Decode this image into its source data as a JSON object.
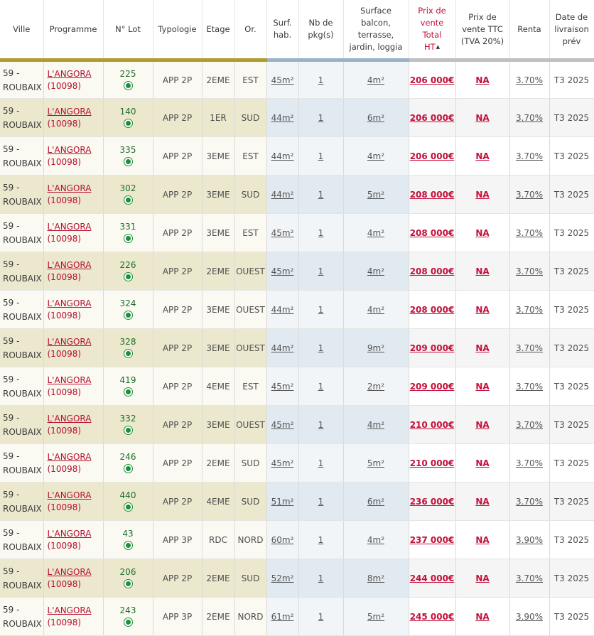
{
  "columns": {
    "ville": "Ville",
    "programme": "Programme",
    "lot": "N° Lot",
    "typologie": "Typologie",
    "etage": "Etage",
    "or": "Or.",
    "surf": "Surf. hab.",
    "pkg": "Nb de pkg(s)",
    "surface_ext": "Surface balcon, terrasse, jardin, loggia",
    "prix_ht": "Prix de vente Total HT",
    "prix_ttc": "Prix de vente TTC (TVA 20%)",
    "renta": "Renta",
    "livraison": "Date de livraison prév"
  },
  "rows": [
    {
      "ville": "59 - ROUBAIX",
      "programme": "L'ANGORA",
      "code": "(10098)",
      "lot": "225",
      "typo": "APP 2P",
      "etage": "2EME",
      "or": "EST",
      "surf": "45m²",
      "pkg": "1",
      "ext": "4m²",
      "prix": "206 000€",
      "ttc": "NA",
      "renta": "3.70%",
      "livraison": "T3 2025"
    },
    {
      "ville": "59 - ROUBAIX",
      "programme": "L'ANGORA",
      "code": "(10098)",
      "lot": "140",
      "typo": "APP 2P",
      "etage": "1ER",
      "or": "SUD",
      "surf": "44m²",
      "pkg": "1",
      "ext": "6m²",
      "prix": "206 000€",
      "ttc": "NA",
      "renta": "3.70%",
      "livraison": "T3 2025"
    },
    {
      "ville": "59 - ROUBAIX",
      "programme": "L'ANGORA",
      "code": "(10098)",
      "lot": "335",
      "typo": "APP 2P",
      "etage": "3EME",
      "or": "EST",
      "surf": "44m²",
      "pkg": "1",
      "ext": "4m²",
      "prix": "206 000€",
      "ttc": "NA",
      "renta": "3.70%",
      "livraison": "T3 2025"
    },
    {
      "ville": "59 - ROUBAIX",
      "programme": "L'ANGORA",
      "code": "(10098)",
      "lot": "302",
      "typo": "APP 2P",
      "etage": "3EME",
      "or": "SUD",
      "surf": "44m²",
      "pkg": "1",
      "ext": "5m²",
      "prix": "208 000€",
      "ttc": "NA",
      "renta": "3.70%",
      "livraison": "T3 2025"
    },
    {
      "ville": "59 - ROUBAIX",
      "programme": "L'ANGORA",
      "code": "(10098)",
      "lot": "331",
      "typo": "APP 2P",
      "etage": "3EME",
      "or": "EST",
      "surf": "45m²",
      "pkg": "1",
      "ext": "4m²",
      "prix": "208 000€",
      "ttc": "NA",
      "renta": "3.70%",
      "livraison": "T3 2025"
    },
    {
      "ville": "59 - ROUBAIX",
      "programme": "L'ANGORA",
      "code": "(10098)",
      "lot": "226",
      "typo": "APP 2P",
      "etage": "2EME",
      "or": "OUEST",
      "surf": "45m²",
      "pkg": "1",
      "ext": "4m²",
      "prix": "208 000€",
      "ttc": "NA",
      "renta": "3.70%",
      "livraison": "T3 2025"
    },
    {
      "ville": "59 - ROUBAIX",
      "programme": "L'ANGORA",
      "code": "(10098)",
      "lot": "324",
      "typo": "APP 2P",
      "etage": "3EME",
      "or": "OUEST",
      "surf": "44m²",
      "pkg": "1",
      "ext": "4m²",
      "prix": "208 000€",
      "ttc": "NA",
      "renta": "3.70%",
      "livraison": "T3 2025"
    },
    {
      "ville": "59 - ROUBAIX",
      "programme": "L'ANGORA",
      "code": "(10098)",
      "lot": "328",
      "typo": "APP 2P",
      "etage": "3EME",
      "or": "OUEST",
      "surf": "44m²",
      "pkg": "1",
      "ext": "9m²",
      "prix": "209 000€",
      "ttc": "NA",
      "renta": "3.70%",
      "livraison": "T3 2025"
    },
    {
      "ville": "59 - ROUBAIX",
      "programme": "L'ANGORA",
      "code": "(10098)",
      "lot": "419",
      "typo": "APP 2P",
      "etage": "4EME",
      "or": "EST",
      "surf": "45m²",
      "pkg": "1",
      "ext": "2m²",
      "prix": "209 000€",
      "ttc": "NA",
      "renta": "3.70%",
      "livraison": "T3 2025"
    },
    {
      "ville": "59 - ROUBAIX",
      "programme": "L'ANGORA",
      "code": "(10098)",
      "lot": "332",
      "typo": "APP 2P",
      "etage": "3EME",
      "or": "OUEST",
      "surf": "45m²",
      "pkg": "1",
      "ext": "4m²",
      "prix": "210 000€",
      "ttc": "NA",
      "renta": "3.70%",
      "livraison": "T3 2025"
    },
    {
      "ville": "59 - ROUBAIX",
      "programme": "L'ANGORA",
      "code": "(10098)",
      "lot": "246",
      "typo": "APP 2P",
      "etage": "2EME",
      "or": "SUD",
      "surf": "45m²",
      "pkg": "1",
      "ext": "5m²",
      "prix": "210 000€",
      "ttc": "NA",
      "renta": "3.70%",
      "livraison": "T3 2025"
    },
    {
      "ville": "59 - ROUBAIX",
      "programme": "L'ANGORA",
      "code": "(10098)",
      "lot": "440",
      "typo": "APP 2P",
      "etage": "4EME",
      "or": "SUD",
      "surf": "51m²",
      "pkg": "1",
      "ext": "6m²",
      "prix": "236 000€",
      "ttc": "NA",
      "renta": "3.70%",
      "livraison": "T3 2025"
    },
    {
      "ville": "59 - ROUBAIX",
      "programme": "L'ANGORA",
      "code": "(10098)",
      "lot": "43",
      "typo": "APP 3P",
      "etage": "RDC",
      "or": "NORD",
      "surf": "60m²",
      "pkg": "1",
      "ext": "4m²",
      "prix": "237 000€",
      "ttc": "NA",
      "renta": "3.90%",
      "livraison": "T3 2025"
    },
    {
      "ville": "59 - ROUBAIX",
      "programme": "L'ANGORA",
      "code": "(10098)",
      "lot": "206",
      "typo": "APP 2P",
      "etage": "2EME",
      "or": "SUD",
      "surf": "52m²",
      "pkg": "1",
      "ext": "8m²",
      "prix": "244 000€",
      "ttc": "NA",
      "renta": "3.70%",
      "livraison": "T3 2025"
    },
    {
      "ville": "59 - ROUBAIX",
      "programme": "L'ANGORA",
      "code": "(10098)",
      "lot": "243",
      "typo": "APP 3P",
      "etage": "2EME",
      "or": "NORD",
      "surf": "61m²",
      "pkg": "1",
      "ext": "5m²",
      "prix": "245 000€",
      "ttc": "NA",
      "renta": "3.90%",
      "livraison": "T3 2025"
    }
  ],
  "colors": {
    "accent_gold": "#b19b2c",
    "accent_blue": "#98b3c8",
    "price_red": "#c3103b",
    "available_green": "#1d8f3b"
  },
  "icons": {
    "availability": "available-dot-icon",
    "sort": "sort-asc-icon"
  }
}
